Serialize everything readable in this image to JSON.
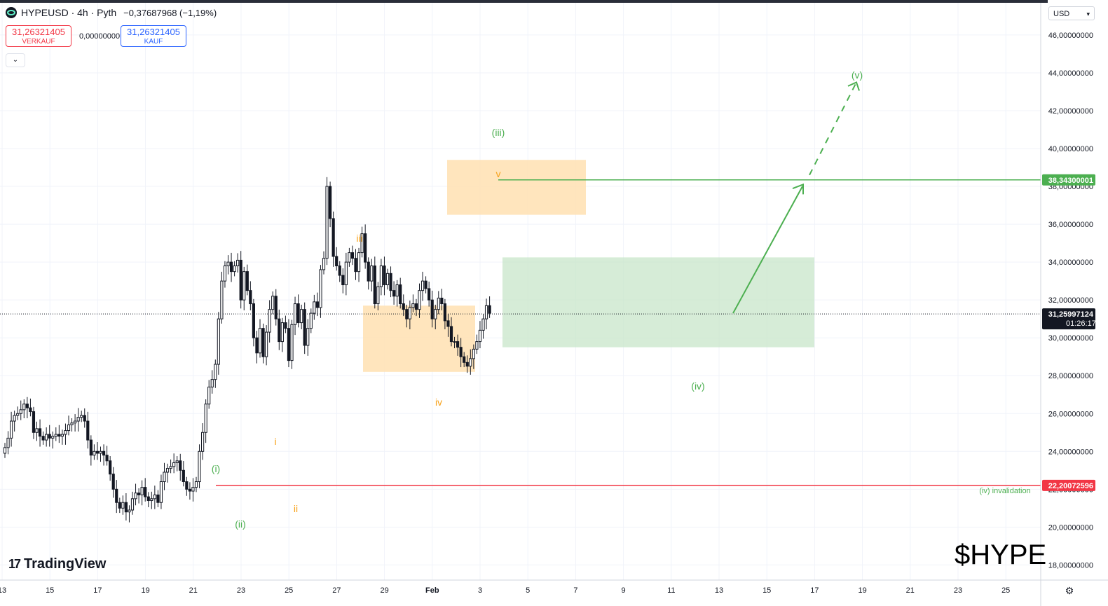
{
  "header": {
    "symbol": "HYPEUSD · 4h · Pyth",
    "change": "−0,37687968 (−1,19%)"
  },
  "trade": {
    "sell_price": "31,26321405",
    "sell_label": "VERKAUF",
    "spread": "0,00000000",
    "buy_price": "31,26321405",
    "buy_label": "KAUF"
  },
  "currency": "USD",
  "price_axis": {
    "ticks": [
      "46,00000000",
      "44,00000000",
      "42,00000000",
      "40,00000000",
      "38,00000000",
      "36,00000000",
      "34,00000000",
      "32,00000000",
      "30,00000000",
      "28,00000000",
      "26,00000000",
      "24,00000000",
      "22,00000000",
      "20,00000000",
      "18,00000000"
    ],
    "resistance_label": "38,34300001",
    "current_price_label": "31,25997124",
    "countdown_label": "01:26:17",
    "invalidation_label": "22,20072596"
  },
  "time_axis": {
    "ticks": [
      "13",
      "15",
      "17",
      "19",
      "21",
      "23",
      "25",
      "27",
      "29",
      "Feb",
      "3",
      "5",
      "7",
      "9",
      "11",
      "13",
      "15",
      "17",
      "19",
      "21",
      "23",
      "25"
    ]
  },
  "wave_labels": {
    "green": [
      "(i)",
      "(ii)",
      "(iii)",
      "(iv)",
      "(v)"
    ],
    "orange": [
      "i",
      "ii",
      "iii",
      "iv",
      "v"
    ]
  },
  "annotations": {
    "invalidation_text": "(iv) invalidation",
    "ticker_text": "$HYPE"
  },
  "watermark": "TradingView",
  "icons": [
    "hype-logo-icon",
    "chevron-down-icon",
    "tradingview-logo-icon",
    "settings-icon"
  ],
  "colors": {
    "resistance": "#4caf50",
    "invalidation": "#f23645",
    "wave_green": "#4caf50",
    "wave_orange": "#f7a21b",
    "green_zone": "#c8e6c9",
    "orange_zone": "#ffe0b2"
  },
  "chart_data": {
    "type": "candlestick",
    "symbol": "HYPEUSD",
    "interval": "4h",
    "ylim": [
      17.2,
      47.7
    ],
    "levels": {
      "resistance": 38.343,
      "current": 31.25997124,
      "invalidation": 22.20072596
    },
    "candles_close": [
      24.2,
      24.7,
      25.6,
      25.9,
      26.0,
      26.2,
      26.5,
      26.3,
      26.1,
      25.0,
      25.2,
      24.8,
      24.6,
      24.9,
      24.7,
      24.8,
      24.9,
      24.8,
      24.9,
      25.1,
      25.4,
      25.5,
      25.6,
      25.8,
      25.9,
      25.6,
      24.6,
      23.8,
      24.0,
      23.9,
      24.0,
      23.8,
      23.5,
      22.8,
      22.0,
      21.3,
      21.0,
      21.3,
      20.8,
      20.9,
      21.5,
      21.8,
      21.7,
      22.1,
      21.6,
      21.4,
      21.5,
      21.7,
      21.3,
      22.4,
      22.9,
      23.1,
      23.2,
      23.4,
      23.5,
      23.0,
      22.4,
      22.0,
      21.9,
      22.1,
      22.4,
      24.0,
      25.0,
      26.5,
      27.4,
      27.8,
      28.6,
      31.0,
      33.0,
      33.8,
      34.0,
      33.5,
      33.8,
      34.1,
      32.0,
      33.5,
      32.5,
      31.8,
      30.0,
      29.2,
      30.5,
      29.0,
      30.3,
      31.5,
      32.2,
      31.0,
      29.8,
      30.8,
      30.5,
      28.8,
      30.7,
      31.8,
      30.8,
      31.5,
      29.6,
      30.5,
      31.3,
      31.9,
      31.6,
      33.6,
      34.2,
      38.0,
      36.3,
      34.3,
      33.8,
      33.3,
      32.8,
      34.0,
      34.5,
      34.2,
      33.5,
      34.5,
      35.5,
      34.0,
      33.0,
      33.8,
      31.8,
      32.7,
      33.8,
      32.8,
      33.4,
      32.5,
      32.2,
      32.8,
      31.8,
      31.5,
      31.0,
      31.6,
      31.8,
      31.5,
      32.5,
      33.0,
      32.6,
      32.0,
      31.0,
      31.5,
      32.1,
      31.8,
      30.9,
      30.6,
      29.8,
      29.8,
      29.5,
      29.0,
      28.7,
      28.5,
      28.9,
      29.4,
      29.8,
      30.4,
      31.0,
      31.7,
      31.3
    ],
    "elliott_wave": {
      "green_labels": [
        "(i)",
        "(ii)",
        "(iii)",
        "(iv)",
        "(v)"
      ],
      "orange_labels": [
        "i",
        "ii",
        "iii",
        "iv",
        "v"
      ]
    }
  }
}
